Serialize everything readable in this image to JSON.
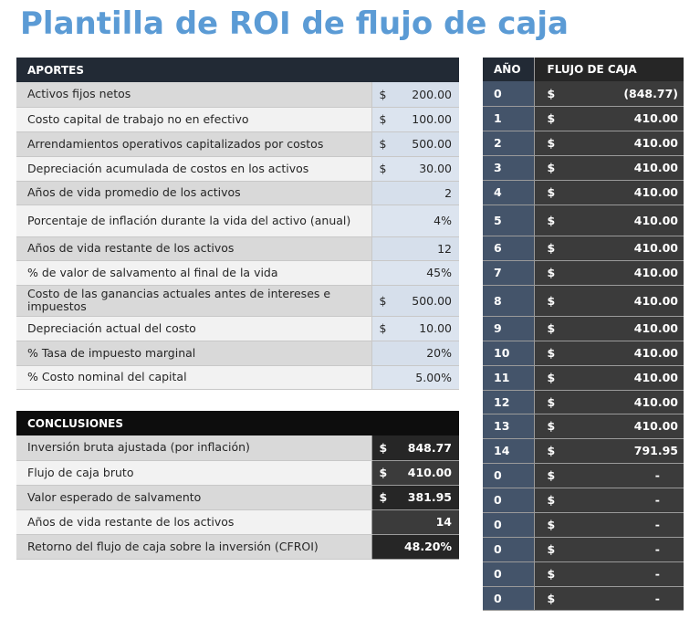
{
  "title": "Plantilla de ROI de flujo de caja",
  "aportes": {
    "header": "APORTES",
    "rows": [
      {
        "label": "Activos fijos netos",
        "currency": "$",
        "value": "200.00"
      },
      {
        "label": "Costo capital de trabajo no en efectivo",
        "currency": "$",
        "value": "100.00"
      },
      {
        "label": "Arrendamientos operativos capitalizados por costos",
        "currency": "$",
        "value": "500.00"
      },
      {
        "label": "Depreciación acumulada de costos en los activos",
        "currency": "$",
        "value": "30.00"
      },
      {
        "label": "Años de vida promedio de los activos",
        "currency": "",
        "value": "2"
      },
      {
        "label": "Porcentaje de inflación durante la vida del activo (anual)",
        "currency": "",
        "value": "4%"
      },
      {
        "label": "Años de vida restante de los activos",
        "currency": "",
        "value": "12"
      },
      {
        "label": "% de valor de salvamento al final de la vida",
        "currency": "",
        "value": "45%"
      },
      {
        "label": "Costo de las ganancias actuales antes de intereses e impuestos",
        "currency": "$",
        "value": "500.00"
      },
      {
        "label": "Depreciación actual del costo",
        "currency": "$",
        "value": "10.00"
      },
      {
        "label": "% Tasa de impuesto marginal",
        "currency": "",
        "value": "20%"
      },
      {
        "label": "% Costo nominal del capital",
        "currency": "",
        "value": "5.00%"
      }
    ]
  },
  "conclusiones": {
    "header": "CONCLUSIONES",
    "rows": [
      {
        "label": "Inversión bruta ajustada (por inflación)",
        "currency": "$",
        "value": "848.77"
      },
      {
        "label": "Flujo de caja bruto",
        "currency": "$",
        "value": "410.00"
      },
      {
        "label": "Valor esperado de salvamento",
        "currency": "$",
        "value": "381.95"
      },
      {
        "label": "Años de vida restante de los activos",
        "currency": "",
        "value": "14"
      },
      {
        "label": "Retorno del flujo de caja sobre la inversión (CFROI)",
        "currency": "",
        "value": "48.20%"
      }
    ]
  },
  "flujo": {
    "year_header": "AÑO",
    "cash_header": "FLUJO DE CAJA",
    "rows": [
      {
        "year": "0",
        "currency": "$",
        "value": "(848.77)"
      },
      {
        "year": "1",
        "currency": "$",
        "value": "410.00"
      },
      {
        "year": "2",
        "currency": "$",
        "value": "410.00"
      },
      {
        "year": "3",
        "currency": "$",
        "value": "410.00"
      },
      {
        "year": "4",
        "currency": "$",
        "value": "410.00"
      },
      {
        "year": "5",
        "currency": "$",
        "value": "410.00"
      },
      {
        "year": "6",
        "currency": "$",
        "value": "410.00"
      },
      {
        "year": "7",
        "currency": "$",
        "value": "410.00"
      },
      {
        "year": "8",
        "currency": "$",
        "value": "410.00"
      },
      {
        "year": "9",
        "currency": "$",
        "value": "410.00"
      },
      {
        "year": "10",
        "currency": "$",
        "value": "410.00"
      },
      {
        "year": "11",
        "currency": "$",
        "value": "410.00"
      },
      {
        "year": "12",
        "currency": "$",
        "value": "410.00"
      },
      {
        "year": "13",
        "currency": "$",
        "value": "410.00"
      },
      {
        "year": "14",
        "currency": "$",
        "value": "791.95"
      },
      {
        "year": "0",
        "currency": "$",
        "value": "-"
      },
      {
        "year": "0",
        "currency": "$",
        "value": "-"
      },
      {
        "year": "0",
        "currency": "$",
        "value": "-"
      },
      {
        "year": "0",
        "currency": "$",
        "value": "-"
      },
      {
        "year": "0",
        "currency": "$",
        "value": "-"
      },
      {
        "year": "0",
        "currency": "$",
        "value": "-"
      }
    ]
  },
  "colors": {
    "title": "#5b9bd5",
    "aportes_header": "#222a35",
    "conclusiones_header": "#0d0d0d",
    "year_column": "#44546a",
    "cash_column": "#3b3b3b"
  }
}
